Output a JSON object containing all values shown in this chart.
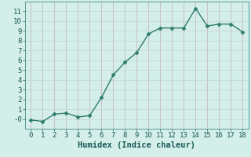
{
  "title": "",
  "xlabel": "Humidex (Indice chaleur)",
  "x": [
    0,
    1,
    2,
    3,
    4,
    5,
    6,
    7,
    8,
    9,
    10,
    11,
    12,
    13,
    14,
    15,
    16,
    17,
    18
  ],
  "y": [
    -0.1,
    -0.25,
    0.5,
    0.6,
    0.2,
    0.35,
    2.2,
    4.5,
    5.8,
    6.8,
    8.7,
    9.3,
    9.3,
    9.3,
    11.3,
    9.5,
    9.7,
    9.7,
    8.9
  ],
  "line_color": "#2e7d6e",
  "marker": "D",
  "marker_size": 2.5,
  "bg_color": "#d4eeea",
  "grid_color": "#b8d8d4",
  "xlim": [
    -0.5,
    18.5
  ],
  "ylim": [
    -1.0,
    12.0
  ],
  "xticks": [
    0,
    1,
    2,
    3,
    4,
    5,
    6,
    7,
    8,
    9,
    10,
    11,
    12,
    13,
    14,
    15,
    16,
    17,
    18
  ],
  "yticks": [
    0,
    1,
    2,
    3,
    4,
    5,
    6,
    7,
    8,
    9,
    10,
    11
  ],
  "xlabel_fontsize": 7.5,
  "tick_fontsize": 6.5,
  "line_width": 1.0
}
